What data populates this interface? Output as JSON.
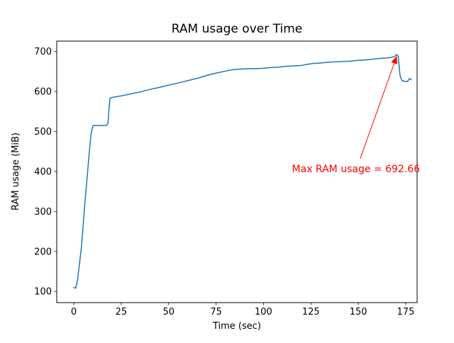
{
  "figure": {
    "title": "RAM usage over Time",
    "xlabel": "Time (sec)",
    "ylabel": "RAM usage (MiB)"
  },
  "chart_data": {
    "type": "line",
    "title": "RAM usage over Time",
    "xlabel": "Time (sec)",
    "ylabel": "RAM usage (MiB)",
    "x": [
      0,
      1,
      2,
      4,
      6,
      8,
      9,
      10,
      11,
      17,
      18,
      19,
      20,
      25,
      30,
      35,
      40,
      45,
      50,
      55,
      60,
      65,
      70,
      75,
      80,
      84,
      88,
      92,
      96,
      100,
      104,
      108,
      112,
      116,
      120,
      123,
      126,
      130,
      134,
      138,
      142,
      146,
      150,
      154,
      158,
      162,
      165,
      167,
      169,
      170,
      171,
      172,
      173,
      175,
      176,
      177,
      178
    ],
    "y": [
      110,
      108,
      130,
      210,
      330,
      440,
      490,
      514,
      515,
      515,
      520,
      583,
      585,
      589,
      594,
      599,
      605,
      610,
      616,
      621,
      627,
      633,
      640,
      646,
      651,
      655,
      656,
      657,
      657,
      658,
      660,
      661,
      663,
      664,
      665,
      668,
      670,
      671,
      673,
      674,
      675,
      676,
      678,
      679,
      681,
      683,
      684,
      685,
      687,
      692.66,
      689,
      640,
      627,
      625,
      625,
      633,
      629
    ],
    "xlim": [
      -9,
      181
    ],
    "ylim": [
      72,
      726
    ],
    "xticks": [
      0,
      25,
      50,
      75,
      100,
      125,
      150,
      175
    ],
    "yticks": [
      100,
      200,
      300,
      400,
      500,
      600,
      700
    ],
    "grid": false,
    "legend": null,
    "line_color": "#1f77b4",
    "annotation": {
      "text": "Max RAM usage = 692.66",
      "color": "#ff0000",
      "max_value": 692.66,
      "text_xy": [
        115,
        398
      ],
      "arrow_from": [
        151,
        432
      ],
      "arrow_to": [
        170.3,
        689
      ]
    }
  }
}
